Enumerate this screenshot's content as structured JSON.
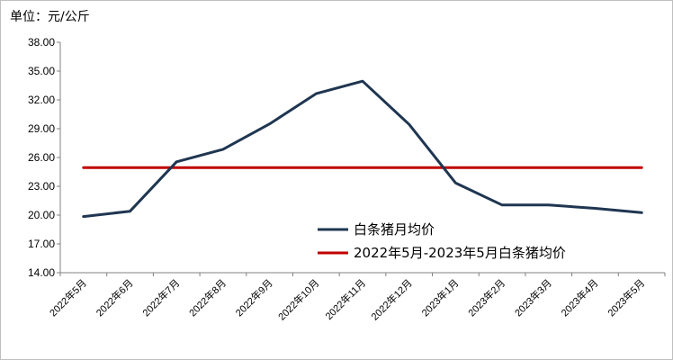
{
  "chart_data": {
    "type": "line",
    "unit_label": "单位：元/公斤",
    "x": [
      "2022年5月",
      "2022年6月",
      "2022年7月",
      "2022年8月",
      "2022年9月",
      "2022年10月",
      "2022年11月",
      "2022年12月",
      "2023年1月",
      "2023年2月",
      "2023年3月",
      "2023年4月",
      "2023年5月"
    ],
    "series": [
      {
        "name": "白条猪月均价",
        "color": "#1f3651",
        "values": [
          19.85,
          20.4,
          25.55,
          26.85,
          29.5,
          32.65,
          33.95,
          29.45,
          23.35,
          21.05,
          21.05,
          20.7,
          20.25
        ]
      },
      {
        "name": "2022年5月-2023年5月白条猪均价",
        "color": "#c00000",
        "values": [
          24.95,
          24.95,
          24.95,
          24.95,
          24.95,
          24.95,
          24.95,
          24.95,
          24.95,
          24.95,
          24.95,
          24.95,
          24.95
        ]
      }
    ],
    "ylim": [
      14.0,
      38.0
    ],
    "yticks": [
      "14.00",
      "17.00",
      "20.00",
      "23.00",
      "26.00",
      "29.00",
      "32.00",
      "35.00",
      "38.00"
    ],
    "grid": false,
    "legend_position": "bottom-right"
  }
}
